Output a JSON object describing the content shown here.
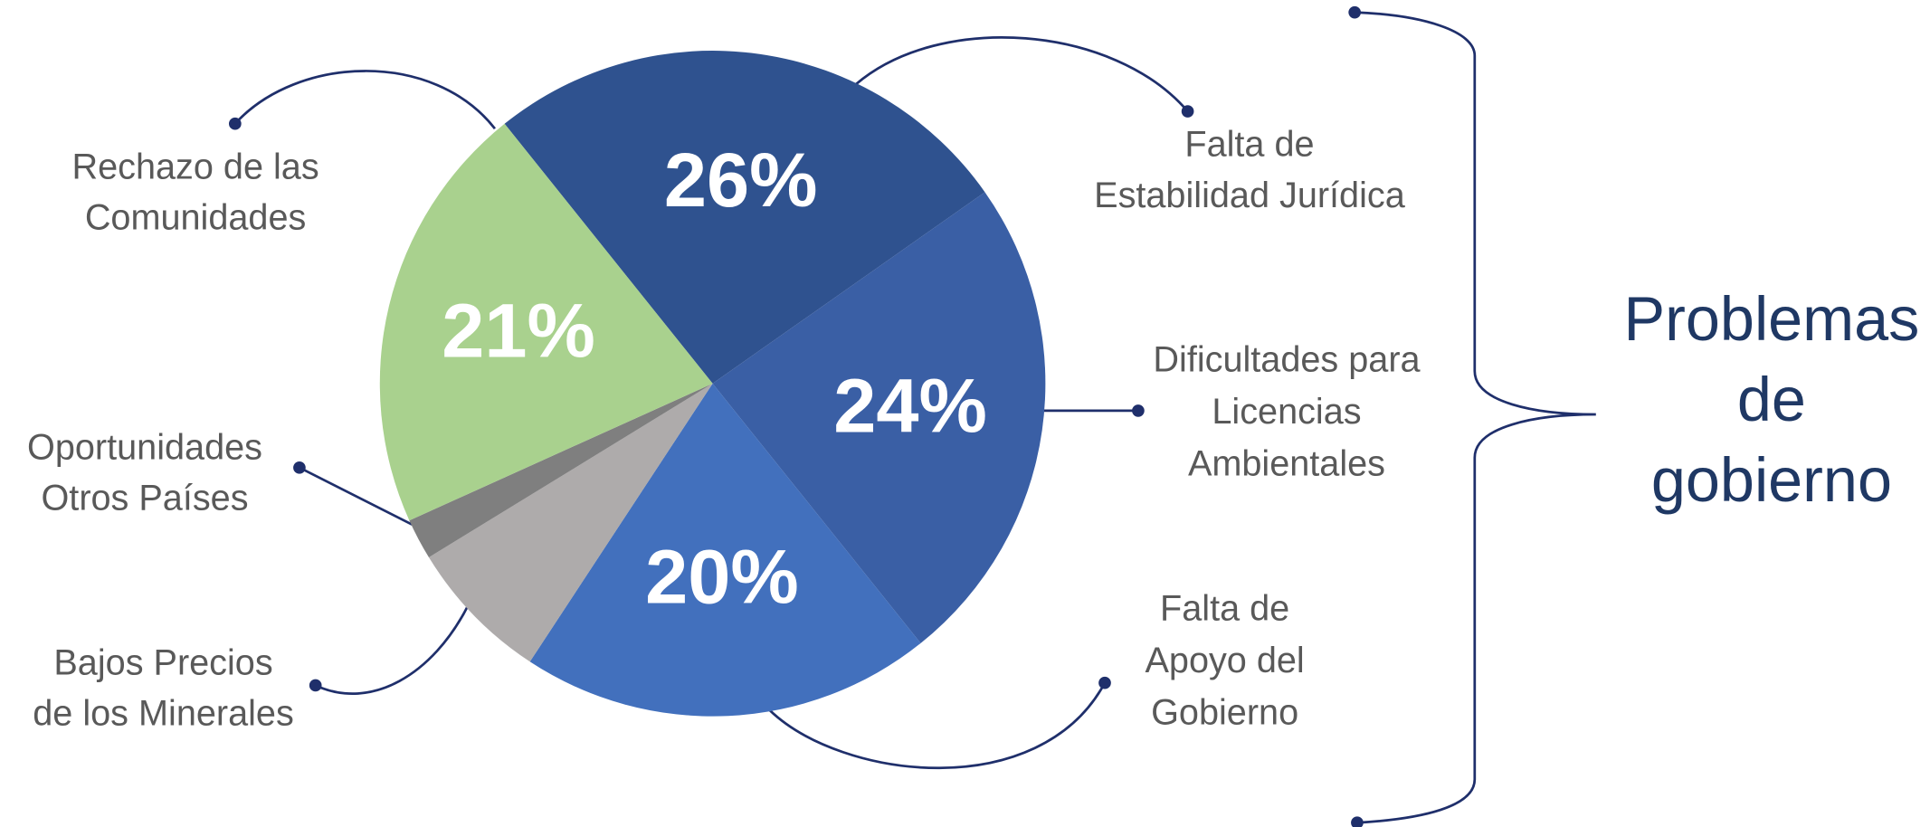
{
  "chart_data": {
    "type": "pie",
    "categories": [
      [
        "Falta de",
        "Estabilidad Jurídica"
      ],
      [
        "Dificultades para",
        "Licencias",
        "Ambientales"
      ],
      [
        "Falta de",
        "Apoyo del",
        "Gobierno"
      ],
      [
        "Bajos Precios",
        "de los Minerales"
      ],
      [
        "Oportunidades",
        "Otros Países"
      ],
      [
        "Rechazo de las",
        "Comunidades"
      ]
    ],
    "values": [
      26,
      24,
      20,
      7,
      2,
      21
    ],
    "value_labels": [
      "26%",
      "24%",
      "20%",
      null,
      null,
      "21%"
    ],
    "colors": [
      "#2f528f",
      "#3a5fa5",
      "#4270bd",
      "#aeabab",
      "#7f7f7f",
      "#a9d18e"
    ],
    "annotation": [
      "Problemas",
      "de",
      "gobierno"
    ]
  }
}
